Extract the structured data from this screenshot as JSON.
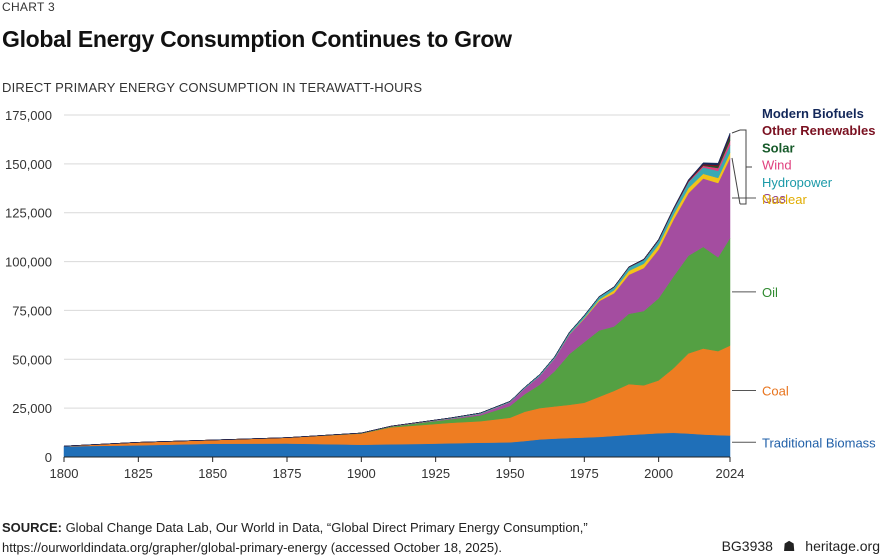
{
  "header": {
    "kicker": "CHART 3",
    "title": "Global Energy Consumption Continues to Grow",
    "subtitle": "DIRECT PRIMARY ENERGY CONSUMPTION IN TERAWATT-HOURS"
  },
  "footer": {
    "source_label": "SOURCE:",
    "source_line1": " Global Change Data Lab, Our World in Data, “Global Direct Primary Energy Consumption,”",
    "source_line2": "https://ourworldindata.org/grapher/global-primary-energy (accessed October 18, 2025).",
    "code": "BG3938",
    "logo_glyph": "☗",
    "site": "heritage.org"
  },
  "chart_data": {
    "type": "area",
    "stacked": true,
    "unit": "terawatt-hours",
    "x": [
      1800,
      1825,
      1850,
      1875,
      1900,
      1910,
      1920,
      1930,
      1940,
      1950,
      1955,
      1960,
      1965,
      1970,
      1975,
      1980,
      1985,
      1990,
      1995,
      2000,
      2005,
      2010,
      2015,
      2020,
      2024
    ],
    "xlim": [
      1800,
      2024
    ],
    "ylim": [
      0,
      175000
    ],
    "x_ticks": [
      1800,
      1825,
      1850,
      1875,
      1900,
      1925,
      1950,
      1975,
      2000,
      2024
    ],
    "y_ticks": [
      0,
      25000,
      50000,
      75000,
      100000,
      125000,
      150000,
      175000
    ],
    "y_tick_labels": [
      "0",
      "25,000",
      "50,000",
      "75,000",
      "100,000",
      "125,000",
      "150,000",
      "175,000"
    ],
    "series": [
      {
        "name": "Traditional Biomass",
        "color": "#1f6fb8",
        "label_color": "#1f5fa8",
        "values": [
          5500,
          6000,
          6800,
          6900,
          6300,
          6500,
          6700,
          7000,
          7300,
          7500,
          8200,
          9000,
          9400,
          9700,
          10000,
          10300,
          10800,
          11300,
          11700,
          12200,
          12400,
          12000,
          11500,
          11200,
          11000
        ]
      },
      {
        "name": "Coal",
        "color": "#ee7d22",
        "label_color": "#e8741d",
        "values": [
          97,
          1500,
          1900,
          3000,
          5700,
          8700,
          9600,
          10500,
          11000,
          12600,
          15000,
          16000,
          16500,
          17000,
          17800,
          20500,
          23000,
          26000,
          25000,
          27000,
          33000,
          41000,
          44000,
          43000,
          46000
        ]
      },
      {
        "name": "Oil",
        "color": "#54a043",
        "label_color": "#2f8a2f",
        "values": [
          0,
          0,
          0,
          20,
          200,
          400,
          1200,
          1800,
          3000,
          6000,
          9000,
          12000,
          18000,
          26000,
          31000,
          34000,
          33000,
          36000,
          38000,
          42000,
          47000,
          50000,
          52000,
          48000,
          55000
        ]
      },
      {
        "name": "Gas",
        "color": "#a44da0",
        "label_color": "#8c3b8c",
        "values": [
          0,
          0,
          0,
          0,
          60,
          150,
          250,
          400,
          800,
          2000,
          3000,
          4500,
          6500,
          10000,
          12000,
          15000,
          17000,
          20000,
          22000,
          25000,
          29000,
          32000,
          35000,
          38000,
          41000
        ]
      },
      {
        "name": "Nuclear",
        "color": "#f2c318",
        "label_color": "#e0ac00",
        "values": [
          0,
          0,
          0,
          0,
          0,
          0,
          0,
          0,
          0,
          0,
          0,
          5,
          30,
          80,
          400,
          800,
          1500,
          2000,
          2200,
          2400,
          2600,
          2600,
          2400,
          2600,
          2700
        ]
      },
      {
        "name": "Hydropower",
        "color": "#3aa9b3",
        "label_color": "#1b9aa8",
        "values": [
          0,
          0,
          0,
          0,
          10,
          40,
          150,
          300,
          400,
          400,
          500,
          700,
          850,
          1000,
          1200,
          1400,
          1600,
          1800,
          2000,
          2300,
          2600,
          3000,
          3300,
          3600,
          3800
        ]
      },
      {
        "name": "Wind",
        "color": "#e0407e",
        "label_color": "#e0407e",
        "values": [
          0,
          0,
          0,
          0,
          0,
          0,
          0,
          0,
          0,
          0,
          0,
          0,
          0,
          0,
          0,
          0,
          0,
          0,
          10,
          30,
          100,
          350,
          800,
          1500,
          2400
        ]
      },
      {
        "name": "Solar",
        "color": "#1a5a2a",
        "label_color": "#175a2a",
        "values": [
          0,
          0,
          0,
          0,
          0,
          0,
          0,
          0,
          0,
          0,
          0,
          0,
          0,
          0,
          0,
          0,
          0,
          0,
          0,
          0,
          5,
          30,
          250,
          850,
          2000
        ]
      },
      {
        "name": "Other Renewables",
        "color": "#7a1020",
        "label_color": "#7a1020",
        "values": [
          0,
          0,
          0,
          0,
          0,
          0,
          0,
          0,
          0,
          0,
          0,
          0,
          0,
          100,
          100,
          150,
          200,
          250,
          300,
          350,
          400,
          500,
          600,
          700,
          800
        ]
      },
      {
        "name": "Modern Biofuels",
        "color": "#13285a",
        "label_color": "#13285a",
        "values": [
          0,
          0,
          0,
          0,
          0,
          0,
          0,
          0,
          0,
          0,
          0,
          0,
          0,
          0,
          0,
          0,
          0,
          0,
          50,
          100,
          200,
          400,
          700,
          900,
          1100
        ]
      }
    ]
  }
}
